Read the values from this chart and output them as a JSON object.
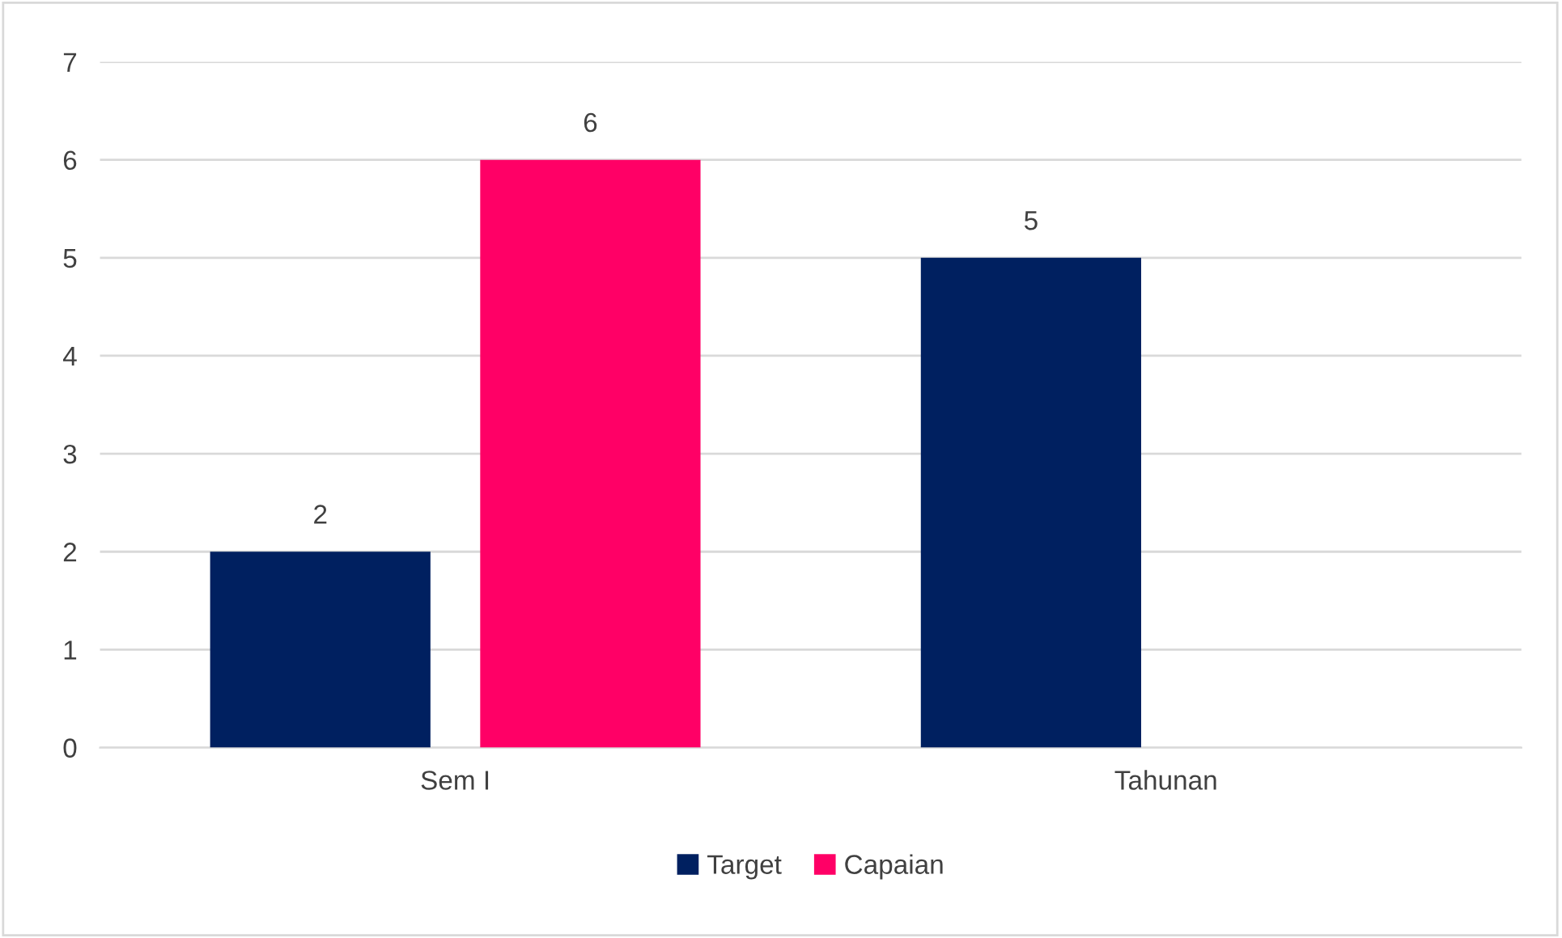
{
  "chart_data": {
    "type": "bar",
    "categories": [
      "Sem I",
      "Tahunan"
    ],
    "series": [
      {
        "name": "Target",
        "color": "#002060",
        "values": [
          2,
          5
        ]
      },
      {
        "name": "Capaian",
        "color": "#ff0066",
        "values": [
          6,
          null
        ]
      }
    ],
    "ylim": [
      0,
      7
    ],
    "yticks": [
      0,
      1,
      2,
      3,
      4,
      5,
      6,
      7
    ],
    "grid": "y",
    "legend": "bottom",
    "data_labels": true
  }
}
